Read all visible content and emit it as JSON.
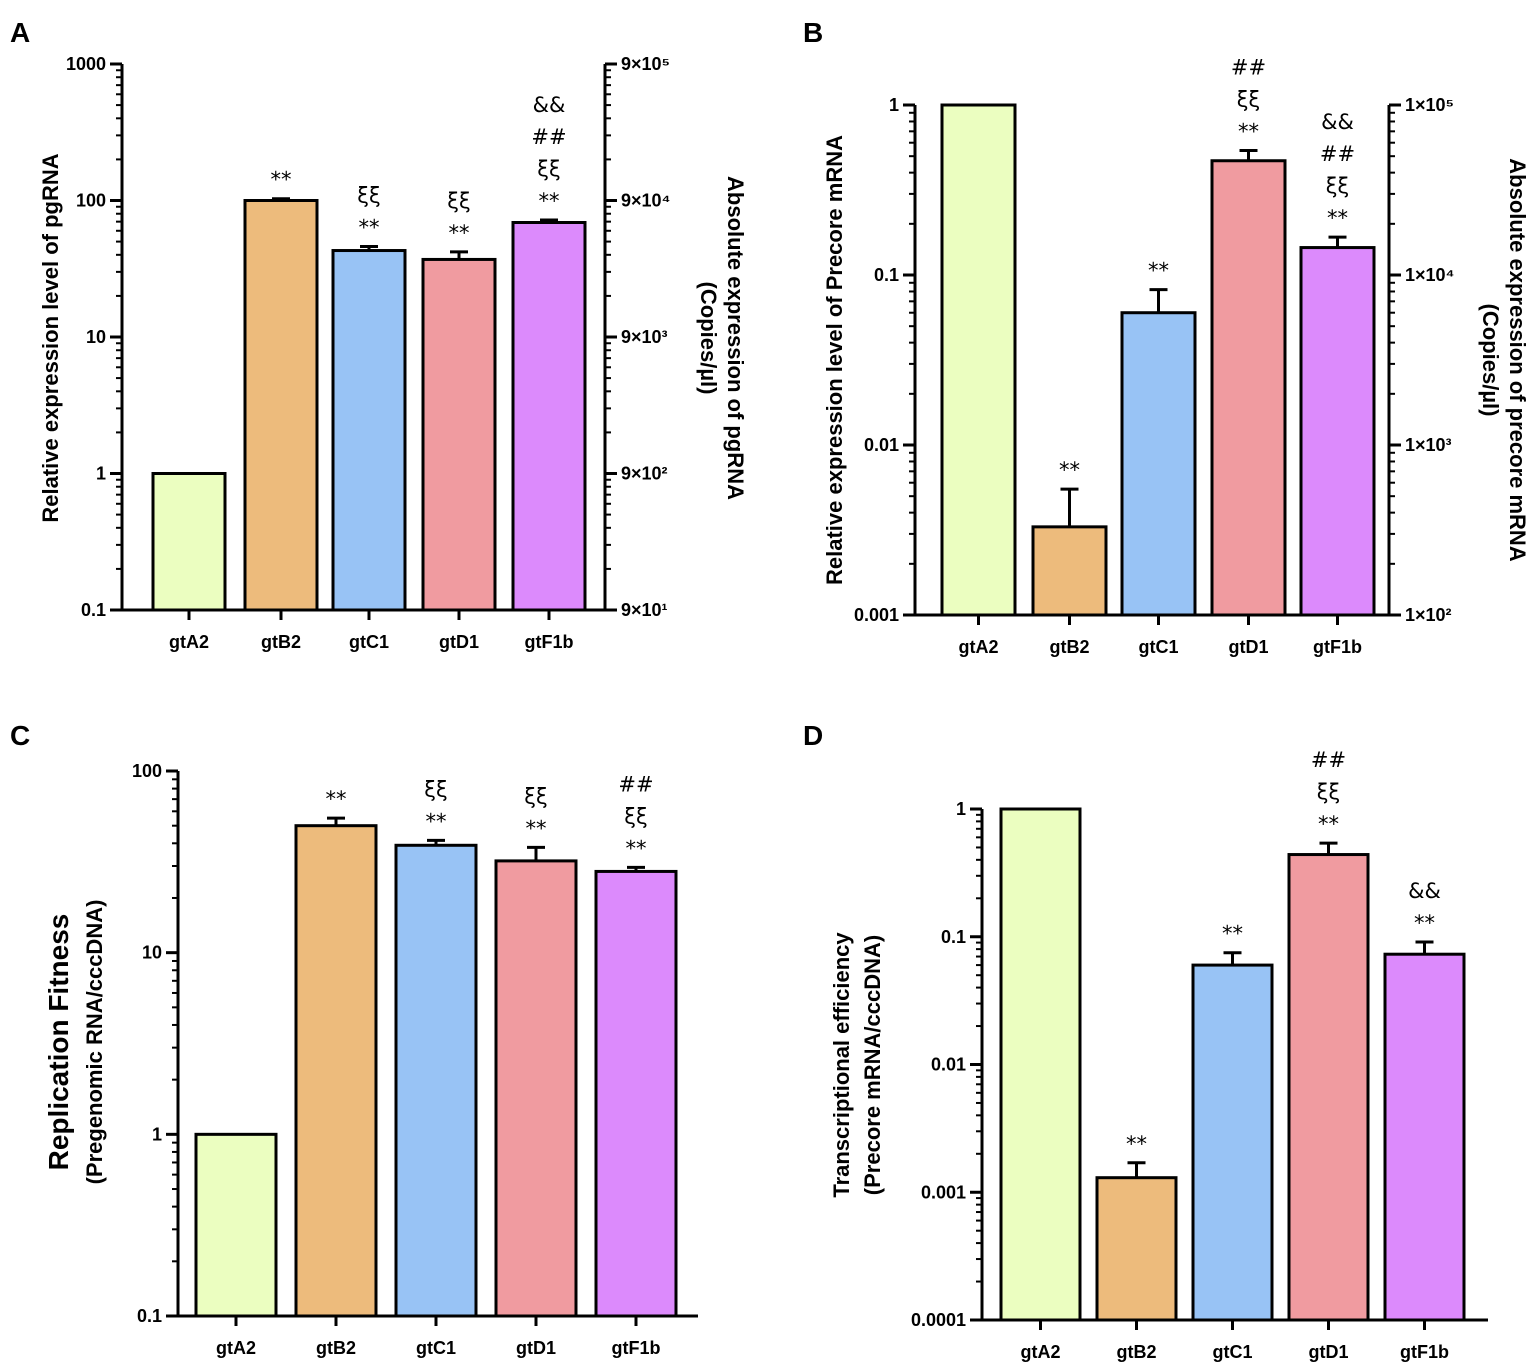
{
  "chart_data": [
    {
      "panel": "A",
      "type": "bar",
      "scale": "log",
      "categories": [
        "gtA2",
        "gtB2",
        "gtC1",
        "gtD1",
        "gtF1b"
      ],
      "values": [
        1,
        100,
        43,
        37,
        69
      ],
      "errors": [
        0,
        3,
        3,
        5,
        3
      ],
      "colors": [
        "#ebfec0",
        "#edbb7c",
        "#98c3f5",
        "#f09ba0",
        "#dc8afc"
      ],
      "ylim": [
        0.1,
        1000
      ],
      "yticks": [
        0.1,
        1,
        10,
        100,
        1000
      ],
      "ytick_labels": [
        "0.1",
        "1",
        "10",
        "100",
        "1000"
      ],
      "ylabel": "Relative expression level of pgRNA",
      "secondary_axis": {
        "tick_labels": [
          "9×10¹",
          "9×10²",
          "9×10³",
          "9×10⁴",
          "9×10⁵"
        ],
        "label_line1": "Absolute expression of pgRNA",
        "label_line2": "(Copies/µl)"
      },
      "annotations": [
        [],
        [
          "**"
        ],
        [
          "ξξ",
          "**"
        ],
        [
          "ξξ",
          "**"
        ],
        [
          "&&",
          "##",
          "ξξ",
          "**"
        ]
      ]
    },
    {
      "panel": "B",
      "type": "bar",
      "scale": "log",
      "categories": [
        "gtA2",
        "gtB2",
        "gtC1",
        "gtD1",
        "gtF1b"
      ],
      "values": [
        1,
        0.0033,
        0.06,
        0.47,
        0.145
      ],
      "errors": [
        0,
        0.0022,
        0.022,
        0.07,
        0.022
      ],
      "colors": [
        "#ebfec0",
        "#edbb7c",
        "#98c3f5",
        "#f09ba0",
        "#dc8afc"
      ],
      "ylim": [
        0.001,
        1
      ],
      "yticks": [
        0.001,
        0.01,
        0.1,
        1
      ],
      "ytick_labels": [
        "0.001",
        "0.01",
        "0.1",
        "1"
      ],
      "ylabel": "Relative expression level of Precore mRNA",
      "secondary_axis": {
        "tick_labels": [
          "1×10²",
          "1×10³",
          "1×10⁴",
          "1×10⁵"
        ],
        "label_line1": "Absolute expression of precore mRNA",
        "label_line2": "(Copies/µl)"
      },
      "annotations": [
        [],
        [
          "**"
        ],
        [
          "**"
        ],
        [
          "##",
          "ξξ",
          "**"
        ],
        [
          "&&",
          "##",
          "ξξ",
          "**"
        ]
      ]
    },
    {
      "panel": "C",
      "type": "bar",
      "scale": "log",
      "categories": [
        "gtA2",
        "gtB2",
        "gtC1",
        "gtD1",
        "gtF1b"
      ],
      "values": [
        1,
        50,
        39,
        32,
        28
      ],
      "errors": [
        0,
        5,
        2.5,
        6,
        1.5
      ],
      "colors": [
        "#ebfec0",
        "#edbb7c",
        "#98c3f5",
        "#f09ba0",
        "#dc8afc"
      ],
      "ylim": [
        0.1,
        100
      ],
      "yticks": [
        0.1,
        1,
        10,
        100
      ],
      "ytick_labels": [
        "0.1",
        "1",
        "10",
        "100"
      ],
      "ylabel_line1": "Replication Fitness",
      "ylabel_line2": "(Pregenomic RNA/cccDNA)",
      "annotations": [
        [],
        [
          "**"
        ],
        [
          "ξξ",
          "**"
        ],
        [
          "ξξ",
          "**"
        ],
        [
          "##",
          "ξξ",
          "**"
        ]
      ]
    },
    {
      "panel": "D",
      "type": "bar",
      "scale": "log",
      "categories": [
        "gtA2",
        "gtB2",
        "gtC1",
        "gtD1",
        "gtF1b"
      ],
      "values": [
        1,
        0.0013,
        0.06,
        0.44,
        0.073
      ],
      "errors": [
        0,
        0.0004,
        0.015,
        0.1,
        0.018
      ],
      "colors": [
        "#ebfec0",
        "#edbb7c",
        "#98c3f5",
        "#f09ba0",
        "#dc8afc"
      ],
      "ylim": [
        0.0001,
        1
      ],
      "yticks": [
        0.0001,
        0.001,
        0.01,
        0.1,
        1
      ],
      "ytick_labels": [
        "0.0001",
        "0.001",
        "0.01",
        "0.1",
        "1"
      ],
      "ylabel_line1": "Transcriptional efficiency",
      "ylabel_line2": "(Precore mRNA/cccDNA)",
      "annotations": [
        [],
        [
          "**"
        ],
        [
          "**"
        ],
        [
          "##",
          "ξξ",
          "**"
        ],
        [
          "&&",
          "**"
        ]
      ]
    }
  ]
}
